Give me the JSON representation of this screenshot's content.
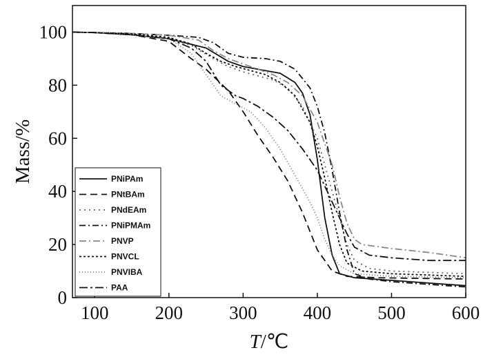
{
  "chart_data": {
    "type": "line",
    "title": "",
    "xlabel": "T/℃",
    "ylabel": "Mass/%",
    "xlim": [
      70,
      600
    ],
    "ylim": [
      0,
      110
    ],
    "xticks": [
      100,
      200,
      300,
      400,
      500,
      600
    ],
    "yticks": [
      0,
      20,
      40,
      60,
      80,
      100
    ],
    "grid": false,
    "legend_position": "bottom-left",
    "series": [
      {
        "name": "PNiPAm",
        "dash": "solid",
        "color": "#111111",
        "points": [
          [
            70,
            100
          ],
          [
            100,
            99.8
          ],
          [
            150,
            99
          ],
          [
            200,
            97.5
          ],
          [
            250,
            94
          ],
          [
            280,
            89
          ],
          [
            300,
            87
          ],
          [
            330,
            85.5
          ],
          [
            350,
            84.5
          ],
          [
            370,
            81
          ],
          [
            380,
            77
          ],
          [
            390,
            69
          ],
          [
            400,
            52
          ],
          [
            410,
            30
          ],
          [
            420,
            16
          ],
          [
            430,
            9
          ],
          [
            450,
            7.5
          ],
          [
            500,
            6.5
          ],
          [
            550,
            5.5
          ],
          [
            600,
            4.5
          ]
        ]
      },
      {
        "name": "PNtBAm",
        "dash": "10,6",
        "color": "#111111",
        "points": [
          [
            70,
            100
          ],
          [
            100,
            99.8
          ],
          [
            150,
            99
          ],
          [
            200,
            96.5
          ],
          [
            230,
            90
          ],
          [
            250,
            86
          ],
          [
            280,
            78
          ],
          [
            300,
            70
          ],
          [
            320,
            61
          ],
          [
            340,
            53
          ],
          [
            360,
            44
          ],
          [
            380,
            32
          ],
          [
            400,
            18
          ],
          [
            420,
            10
          ],
          [
            440,
            8
          ],
          [
            480,
            7.5
          ],
          [
            600,
            7
          ]
        ]
      },
      {
        "name": "PNdEAm",
        "dash": "2,5",
        "color": "#666666",
        "points": [
          [
            70,
            100
          ],
          [
            100,
            99.8
          ],
          [
            150,
            99
          ],
          [
            200,
            97.5
          ],
          [
            230,
            95
          ],
          [
            260,
            90
          ],
          [
            280,
            87
          ],
          [
            300,
            85
          ],
          [
            320,
            83.5
          ],
          [
            340,
            82
          ],
          [
            360,
            79
          ],
          [
            380,
            72
          ],
          [
            400,
            60
          ],
          [
            415,
            45
          ],
          [
            430,
            30
          ],
          [
            440,
            20
          ],
          [
            450,
            14
          ],
          [
            470,
            11
          ],
          [
            500,
            10
          ],
          [
            600,
            9
          ]
        ]
      },
      {
        "name": "PNiPMAm",
        "dash": "9,4,2,4",
        "color": "#111111",
        "points": [
          [
            70,
            100
          ],
          [
            100,
            99.8
          ],
          [
            150,
            99.5
          ],
          [
            200,
            98.8
          ],
          [
            240,
            98
          ],
          [
            260,
            96
          ],
          [
            280,
            92
          ],
          [
            300,
            90.5
          ],
          [
            330,
            90
          ],
          [
            350,
            89
          ],
          [
            370,
            86
          ],
          [
            390,
            79
          ],
          [
            400,
            72
          ],
          [
            410,
            62
          ],
          [
            420,
            48
          ],
          [
            430,
            32
          ],
          [
            440,
            18
          ],
          [
            450,
            9
          ],
          [
            470,
            7
          ],
          [
            500,
            6
          ],
          [
            550,
            5
          ],
          [
            600,
            4
          ]
        ]
      },
      {
        "name": "PNVP",
        "dash": "10,4,2,4",
        "color": "#888888",
        "points": [
          [
            70,
            100
          ],
          [
            100,
            99.8
          ],
          [
            150,
            99.5
          ],
          [
            200,
            98.8
          ],
          [
            240,
            97
          ],
          [
            260,
            93
          ],
          [
            280,
            90
          ],
          [
            300,
            88
          ],
          [
            320,
            86
          ],
          [
            340,
            84
          ],
          [
            360,
            81
          ],
          [
            380,
            76
          ],
          [
            400,
            66
          ],
          [
            420,
            50
          ],
          [
            430,
            38
          ],
          [
            440,
            28
          ],
          [
            450,
            22
          ],
          [
            460,
            20
          ],
          [
            500,
            18.5
          ],
          [
            550,
            17
          ],
          [
            600,
            15
          ]
        ]
      },
      {
        "name": "PNVCL",
        "dash": "3,3",
        "color": "#111111",
        "points": [
          [
            70,
            100
          ],
          [
            100,
            99.8
          ],
          [
            150,
            99.3
          ],
          [
            200,
            98
          ],
          [
            230,
            95.5
          ],
          [
            250,
            92
          ],
          [
            270,
            89
          ],
          [
            290,
            87
          ],
          [
            310,
            85.5
          ],
          [
            330,
            84
          ],
          [
            350,
            81
          ],
          [
            370,
            76
          ],
          [
            390,
            66
          ],
          [
            400,
            57
          ],
          [
            410,
            45
          ],
          [
            420,
            32
          ],
          [
            430,
            20
          ],
          [
            440,
            13
          ],
          [
            460,
            10
          ],
          [
            500,
            9
          ],
          [
            550,
            8.5
          ],
          [
            600,
            8
          ]
        ]
      },
      {
        "name": "PNVIBA",
        "dash": "1,3",
        "color": "#777777",
        "points": [
          [
            70,
            100
          ],
          [
            100,
            99.8
          ],
          [
            150,
            99
          ],
          [
            200,
            97.5
          ],
          [
            230,
            92
          ],
          [
            250,
            84
          ],
          [
            270,
            76
          ],
          [
            290,
            73
          ],
          [
            310,
            70
          ],
          [
            330,
            64
          ],
          [
            350,
            56
          ],
          [
            370,
            46
          ],
          [
            390,
            36
          ],
          [
            400,
            30
          ],
          [
            410,
            22
          ],
          [
            420,
            16
          ],
          [
            430,
            12
          ],
          [
            450,
            9
          ],
          [
            500,
            8
          ],
          [
            600,
            7.5
          ]
        ]
      },
      {
        "name": "PAA",
        "dash": "12,4,3,4",
        "color": "#111111",
        "points": [
          [
            70,
            100
          ],
          [
            100,
            99.8
          ],
          [
            150,
            99
          ],
          [
            200,
            97.5
          ],
          [
            230,
            94
          ],
          [
            250,
            89
          ],
          [
            270,
            80
          ],
          [
            290,
            76
          ],
          [
            300,
            75
          ],
          [
            320,
            72
          ],
          [
            340,
            68
          ],
          [
            360,
            63
          ],
          [
            380,
            56
          ],
          [
            400,
            48
          ],
          [
            420,
            36
          ],
          [
            440,
            24
          ],
          [
            450,
            19
          ],
          [
            470,
            16
          ],
          [
            500,
            15
          ],
          [
            550,
            14
          ],
          [
            600,
            14
          ]
        ]
      }
    ]
  }
}
